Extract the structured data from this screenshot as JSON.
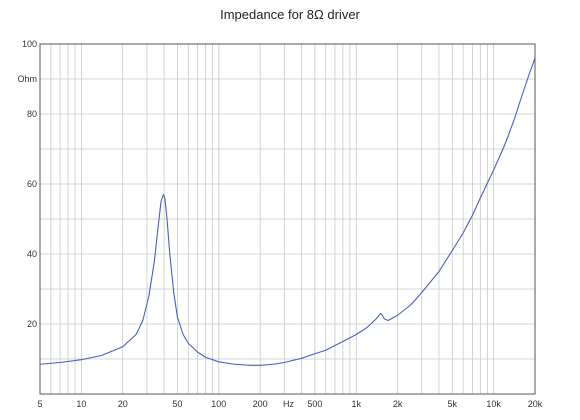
{
  "chart_data": {
    "type": "line",
    "title": "Impedance for 8Ω driver",
    "xlabel": "Hz",
    "ylabel": "Ohm",
    "x_scale": "log",
    "xlim": [
      5,
      20000
    ],
    "ylim": [
      0,
      100
    ],
    "grid": true,
    "colors": {
      "line": "#4a5fc1",
      "grid": "#c8c8c8",
      "axis": "#555555"
    },
    "x_ticks": [
      {
        "value": 5,
        "label": "5"
      },
      {
        "value": 10,
        "label": "10"
      },
      {
        "value": 20,
        "label": "20"
      },
      {
        "value": 50,
        "label": "50"
      },
      {
        "value": 100,
        "label": "100"
      },
      {
        "value": 200,
        "label": "200"
      },
      {
        "value": 500,
        "label": "500"
      },
      {
        "value": 1000,
        "label": "1k"
      },
      {
        "value": 2000,
        "label": "2k"
      },
      {
        "value": 5000,
        "label": "5k"
      },
      {
        "value": 10000,
        "label": "10k"
      },
      {
        "value": 20000,
        "label": "20k"
      }
    ],
    "y_ticks": [
      {
        "value": 20,
        "label": "20"
      },
      {
        "value": 40,
        "label": "40"
      },
      {
        "value": 60,
        "label": "60"
      },
      {
        "value": 80,
        "label": "80"
      },
      {
        "value": 100,
        "label": "100"
      }
    ],
    "series": [
      {
        "x": [
          5,
          7,
          10,
          14,
          20,
          25,
          28,
          31,
          34,
          36,
          38,
          39.5,
          40.5,
          42,
          44,
          47,
          50,
          55,
          60,
          70,
          80,
          100,
          130,
          170,
          200,
          250,
          300,
          400,
          500,
          600,
          800,
          1000,
          1200,
          1400,
          1500,
          1550,
          1600,
          1700,
          1800,
          2000,
          2500,
          3000,
          4000,
          5000,
          6000,
          7000,
          8000,
          10000,
          12000,
          14000,
          16000,
          18000,
          20000
        ],
        "y": [
          8.5,
          9,
          9.8,
          11,
          13.5,
          17,
          21,
          28,
          38,
          47,
          55,
          57,
          56,
          50,
          40,
          29,
          22,
          17,
          14.5,
          12,
          10.5,
          9.2,
          8.5,
          8.2,
          8.2,
          8.5,
          9,
          10.2,
          11.5,
          12.5,
          15,
          17,
          19,
          21.5,
          23,
          22.5,
          21.5,
          21,
          21.5,
          22.5,
          25.5,
          29,
          35,
          41,
          46,
          51,
          56,
          64,
          71,
          78,
          85,
          91,
          96
        ]
      }
    ]
  }
}
